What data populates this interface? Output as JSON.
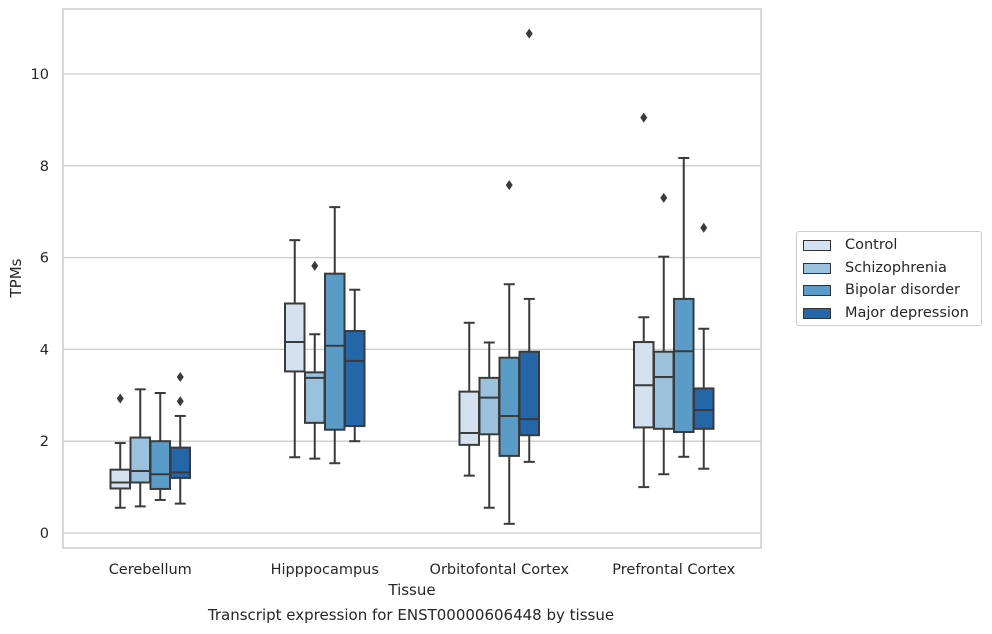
{
  "chart_data": {
    "type": "boxplot",
    "xlabel": "Tissue",
    "ylabel": "TPMs",
    "ylim": [
      -0.3,
      11.4
    ],
    "yticks": [
      0,
      2,
      4,
      6,
      8,
      10
    ],
    "grid": "horizontal",
    "legend_position": "right",
    "categories": [
      "Cerebellum",
      "Hipppocampus",
      "Orbitofontal Cortex",
      "Prefrontal Cortex"
    ],
    "series": [
      {
        "name": "Control",
        "color": "#d4e2f0",
        "boxes": [
          {
            "whisker_low": 0.55,
            "q1": 0.97,
            "median": 1.1,
            "q3": 1.38,
            "whisker_high": 1.96,
            "outliers": [
              2.93
            ]
          },
          {
            "whisker_low": 1.65,
            "q1": 3.52,
            "median": 4.16,
            "q3": 5.0,
            "whisker_high": 6.38,
            "outliers": []
          },
          {
            "whisker_low": 1.25,
            "q1": 1.92,
            "median": 2.18,
            "q3": 3.08,
            "whisker_high": 4.58,
            "outliers": []
          },
          {
            "whisker_low": 1.0,
            "q1": 2.3,
            "median": 3.22,
            "q3": 4.16,
            "whisker_high": 4.7,
            "outliers": [
              9.05
            ]
          }
        ]
      },
      {
        "name": "Schizophrenia",
        "color": "#9ac2dc",
        "boxes": [
          {
            "whisker_low": 0.58,
            "q1": 1.1,
            "median": 1.35,
            "q3": 2.08,
            "whisker_high": 3.13,
            "outliers": []
          },
          {
            "whisker_low": 1.62,
            "q1": 2.4,
            "median": 3.38,
            "q3": 3.5,
            "whisker_high": 4.33,
            "outliers": [
              5.82
            ]
          },
          {
            "whisker_low": 0.55,
            "q1": 2.15,
            "median": 2.95,
            "q3": 3.38,
            "whisker_high": 4.15,
            "outliers": []
          },
          {
            "whisker_low": 1.28,
            "q1": 2.27,
            "median": 3.4,
            "q3": 3.95,
            "whisker_high": 6.02,
            "outliers": [
              7.3
            ]
          }
        ]
      },
      {
        "name": "Bipolar disorder",
        "color": "#5a9cc8",
        "boxes": [
          {
            "whisker_low": 0.72,
            "q1": 0.96,
            "median": 1.28,
            "q3": 2.0,
            "whisker_high": 3.05,
            "outliers": []
          },
          {
            "whisker_low": 1.52,
            "q1": 2.25,
            "median": 4.08,
            "q3": 5.65,
            "whisker_high": 7.1,
            "outliers": []
          },
          {
            "whisker_low": 0.2,
            "q1": 1.68,
            "median": 2.55,
            "q3": 3.82,
            "whisker_high": 5.42,
            "outliers": [
              7.58
            ]
          },
          {
            "whisker_low": 1.66,
            "q1": 2.2,
            "median": 3.96,
            "q3": 5.1,
            "whisker_high": 8.17,
            "outliers": []
          }
        ]
      },
      {
        "name": "Major depression",
        "color": "#2467a8",
        "boxes": [
          {
            "whisker_low": 0.64,
            "q1": 1.2,
            "median": 1.32,
            "q3": 1.86,
            "whisker_high": 2.55,
            "outliers": [
              2.87,
              3.4
            ]
          },
          {
            "whisker_low": 2.0,
            "q1": 2.33,
            "median": 3.75,
            "q3": 4.4,
            "whisker_high": 5.3,
            "outliers": []
          },
          {
            "whisker_low": 1.55,
            "q1": 2.13,
            "median": 2.48,
            "q3": 3.95,
            "whisker_high": 5.1,
            "outliers": [
              10.88
            ]
          },
          {
            "whisker_low": 1.4,
            "q1": 2.27,
            "median": 2.68,
            "q3": 3.15,
            "whisker_high": 4.45,
            "outliers": [
              6.65
            ]
          }
        ]
      }
    ],
    "caption": "Transcript expression for ENST00000606448 by tissue"
  }
}
